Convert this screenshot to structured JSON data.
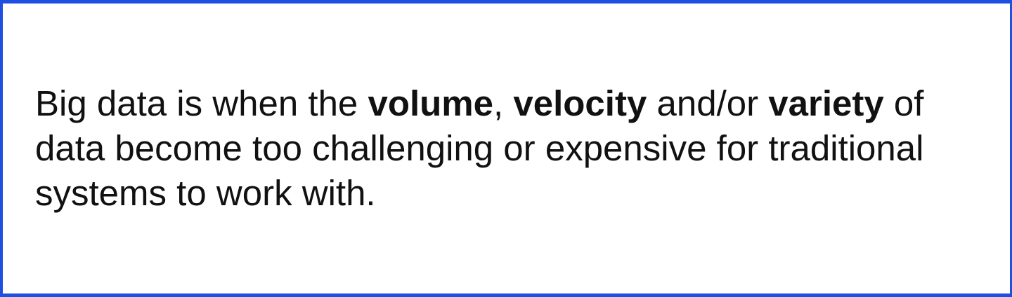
{
  "statement": {
    "intro": "Big data is when the ",
    "term_volume": "volume",
    "sep_comma": ", ",
    "term_velocity": "velocity",
    "sep_andor": " and/or ",
    "term_variety": "variety",
    "rest_line1": " of",
    "line2": "data become too challenging or expensive for traditional",
    "line3": "systems to work with."
  },
  "colors": {
    "frame_border": "#1f4fe0",
    "text": "#111111",
    "background": "#ffffff"
  }
}
